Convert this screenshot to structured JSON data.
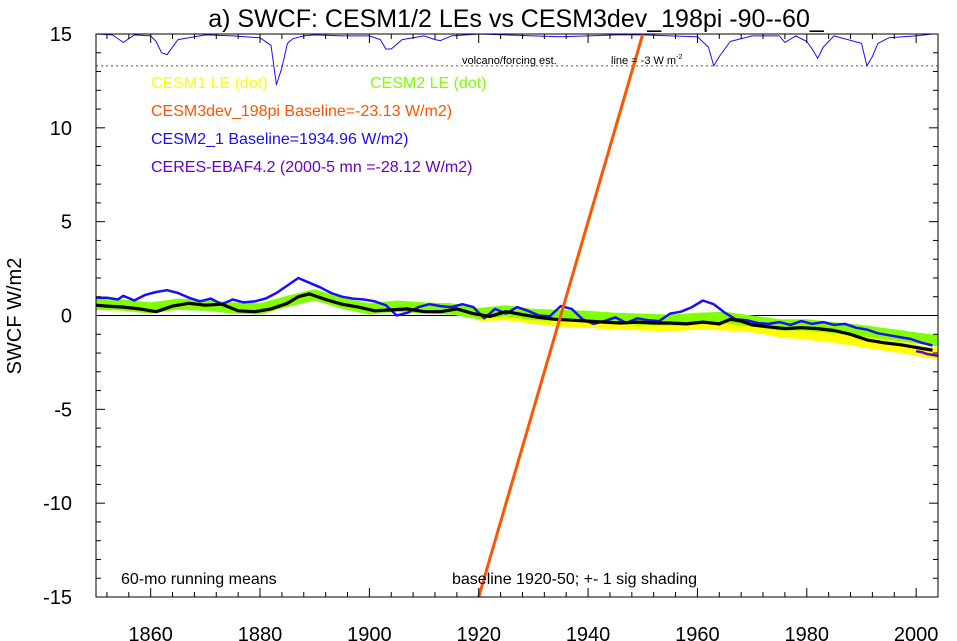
{
  "chart_data": {
    "type": "line",
    "title": "a) SWCF: CESM1/2 LEs vs CESM3dev_198pi -90--60_",
    "ylabel": "SWCF W/m2",
    "xlabel": "",
    "xlim": [
      1850,
      2004
    ],
    "ylim": [
      -15,
      15
    ],
    "xticks": [
      1860,
      1880,
      1900,
      1920,
      1940,
      1960,
      1980,
      2000
    ],
    "xtick_labels": [
      "1860",
      "1880",
      "1900",
      "1920",
      "1940",
      "1960",
      "1980",
      "2000"
    ],
    "yticks": [
      -15,
      -10,
      -5,
      0,
      5,
      10,
      15
    ],
    "ytick_labels": [
      "-15",
      "-10",
      "-5",
      "0",
      "5",
      "10",
      "15"
    ],
    "legend_entries": [
      {
        "text": "CESM1 LE (dot)",
        "color": "#ffff00"
      },
      {
        "text": "CESM2 LE (dot)",
        "color": "#80ff00"
      },
      {
        "text": "CESM3dev_198pi Baseline=-23.13 W/m2)",
        "color": "#ff5500"
      },
      {
        "text": "CESM2_1 Baseline=1934.96 W/m2)",
        "color": "#1a0dff"
      },
      {
        "text": "CERES-EBAF4.2 (2000-5 mn =-28.12 W/m2)",
        "color": "#6600cc"
      }
    ],
    "annotations": {
      "volcano_label": "volcano/forcing est.",
      "line_label": "line = -3 W m",
      "line_label_sup": "-2",
      "running_means": "60-mo running means",
      "baseline_note": "baseline 1920-50; +- 1 sig shading"
    },
    "reference_lines": {
      "zero": 0,
      "dotted": 13.3
    },
    "series": [
      {
        "name": "CESM3dev_198pi",
        "color": "#ff5500",
        "x": [
          1920.0,
          1950.0
        ],
        "y": [
          -15.0,
          15.0
        ]
      },
      {
        "name": "CESM2_1",
        "color": "#1a0dff",
        "x": [
          1850,
          1852,
          1854,
          1855,
          1857,
          1859,
          1861,
          1863,
          1865,
          1867,
          1869,
          1871,
          1873,
          1875,
          1877,
          1879,
          1881,
          1883,
          1885,
          1887,
          1889,
          1891,
          1893,
          1895,
          1897,
          1899,
          1901,
          1903,
          1905,
          1907,
          1909,
          1911,
          1913,
          1915,
          1917,
          1919,
          1921,
          1923,
          1925,
          1927,
          1929,
          1931,
          1933,
          1935,
          1937,
          1939,
          1941,
          1943,
          1945,
          1947,
          1949,
          1951,
          1953,
          1955,
          1957,
          1959,
          1961,
          1963,
          1965,
          1967,
          1969,
          1971,
          1973,
          1975,
          1977,
          1979,
          1981,
          1983,
          1985,
          1987,
          1989,
          1991,
          1993,
          1995,
          1997,
          1999,
          2001,
          2003
        ],
        "y": [
          0.95,
          0.95,
          0.85,
          1.05,
          0.8,
          1.1,
          1.25,
          1.35,
          1.2,
          0.95,
          0.75,
          0.9,
          0.6,
          0.85,
          0.7,
          0.75,
          0.9,
          1.2,
          1.6,
          2.0,
          1.75,
          1.5,
          1.2,
          1.0,
          0.9,
          0.85,
          0.75,
          0.55,
          0.0,
          0.15,
          0.45,
          0.6,
          0.5,
          0.45,
          0.6,
          0.45,
          -0.15,
          0.35,
          0.1,
          0.45,
          0.25,
          0.0,
          -0.05,
          0.5,
          0.35,
          -0.2,
          -0.45,
          -0.3,
          -0.1,
          -0.4,
          -0.15,
          -0.25,
          -0.3,
          0.1,
          0.2,
          0.45,
          0.8,
          0.6,
          0.15,
          -0.2,
          -0.25,
          -0.4,
          -0.45,
          -0.35,
          -0.5,
          -0.3,
          -0.45,
          -0.35,
          -0.5,
          -0.45,
          -0.65,
          -0.75,
          -0.95,
          -1.05,
          -1.15,
          -1.25,
          -1.45,
          -1.6
        ]
      },
      {
        "name": "CESM2 LE",
        "color": "#80ff00",
        "x": [
          1850,
          1855,
          1860,
          1865,
          1870,
          1875,
          1880,
          1885,
          1890,
          1895,
          1900,
          1905,
          1910,
          1915,
          1920,
          1925,
          1930,
          1935,
          1940,
          1945,
          1950,
          1955,
          1960,
          1965,
          1970,
          1975,
          1980,
          1985,
          1990,
          1995,
          2000,
          2004
        ],
        "y": [
          0.6,
          0.55,
          0.4,
          0.6,
          0.55,
          0.4,
          0.35,
          0.75,
          1.1,
          0.65,
          0.35,
          0.5,
          0.4,
          0.35,
          0.1,
          0.25,
          0.05,
          0.0,
          -0.05,
          -0.15,
          -0.2,
          -0.25,
          -0.15,
          -0.1,
          -0.3,
          -0.5,
          -0.5,
          -0.65,
          -0.8,
          -1.0,
          -1.2,
          -1.35
        ],
        "spread": 0.3
      },
      {
        "name": "CESM1 LE",
        "color": "#ffff00",
        "x": [
          1920,
          1925,
          1930,
          1935,
          1940,
          1945,
          1950,
          1955,
          1960,
          1965,
          1970,
          1975,
          1980,
          1985,
          1990,
          1995,
          2000,
          2004
        ],
        "y": [
          0.0,
          0.05,
          -0.15,
          -0.3,
          -0.35,
          -0.45,
          -0.5,
          -0.55,
          -0.45,
          -0.5,
          -0.6,
          -0.85,
          -1.0,
          -1.15,
          -1.4,
          -1.6,
          -1.85,
          -2.05
        ],
        "spread": 0.3
      },
      {
        "name": "CERES-EBAF4.2",
        "color": "#6600cc",
        "x": [
          2000,
          2001,
          2002,
          2003,
          2004
        ],
        "y": [
          -1.9,
          -1.95,
          -2.05,
          -2.1,
          -2.15
        ]
      },
      {
        "name": "Ensemble mean",
        "color": "#000000",
        "x": [
          1850,
          1852,
          1855,
          1858,
          1861,
          1864,
          1867,
          1870,
          1873,
          1876,
          1879,
          1882,
          1885,
          1887,
          1889,
          1892,
          1895,
          1898,
          1901,
          1904,
          1907,
          1910,
          1913,
          1916,
          1919,
          1922,
          1925,
          1928,
          1931,
          1934,
          1937,
          1940,
          1943,
          1946,
          1949,
          1952,
          1955,
          1958,
          1961,
          1964,
          1966,
          1968,
          1970,
          1973,
          1976,
          1979,
          1982,
          1985,
          1988,
          1991,
          1994,
          1997,
          2000,
          2003
        ],
        "y": [
          0.55,
          0.5,
          0.45,
          0.35,
          0.2,
          0.5,
          0.65,
          0.55,
          0.6,
          0.25,
          0.2,
          0.35,
          0.65,
          1.0,
          1.15,
          0.85,
          0.6,
          0.45,
          0.25,
          0.3,
          0.35,
          0.2,
          0.2,
          0.35,
          0.1,
          -0.05,
          0.2,
          0.05,
          -0.1,
          -0.2,
          -0.25,
          -0.3,
          -0.35,
          -0.4,
          -0.35,
          -0.4,
          -0.4,
          -0.45,
          -0.35,
          -0.45,
          -0.2,
          -0.3,
          -0.5,
          -0.6,
          -0.7,
          -0.65,
          -0.7,
          -0.8,
          -1.0,
          -1.3,
          -1.45,
          -1.55,
          -1.7,
          -1.85
        ]
      },
      {
        "name": "Volcanic forcing estimate",
        "color": "#1a0dff",
        "x": [
          1850,
          1853,
          1855,
          1857,
          1860,
          1861,
          1862,
          1863,
          1865,
          1870,
          1875,
          1880,
          1882,
          1883,
          1884,
          1885,
          1886,
          1888,
          1890,
          1895,
          1900,
          1902,
          1903,
          1904,
          1906,
          1910,
          1912,
          1913,
          1915,
          1920,
          1925,
          1930,
          1935,
          1940,
          1945,
          1950,
          1955,
          1960,
          1962,
          1963,
          1964,
          1966,
          1970,
          1975,
          1976,
          1978,
          1980,
          1981,
          1982,
          1983,
          1985,
          1990,
          1991,
          1992,
          1993,
          1995,
          2000,
          2003
        ],
        "y": [
          15.0,
          14.95,
          14.55,
          14.95,
          14.9,
          14.6,
          14.0,
          13.9,
          14.7,
          14.95,
          14.9,
          14.8,
          14.4,
          12.3,
          13.2,
          14.5,
          14.75,
          14.9,
          14.95,
          14.9,
          14.9,
          14.7,
          14.2,
          14.2,
          14.7,
          14.9,
          14.7,
          14.65,
          14.9,
          15.0,
          14.95,
          14.9,
          14.85,
          14.9,
          14.95,
          14.95,
          14.9,
          14.85,
          14.3,
          13.3,
          13.8,
          14.6,
          14.9,
          14.9,
          14.55,
          14.9,
          14.6,
          14.2,
          13.7,
          14.3,
          14.9,
          14.5,
          13.3,
          13.8,
          14.5,
          14.8,
          14.9,
          15.0
        ]
      }
    ]
  }
}
